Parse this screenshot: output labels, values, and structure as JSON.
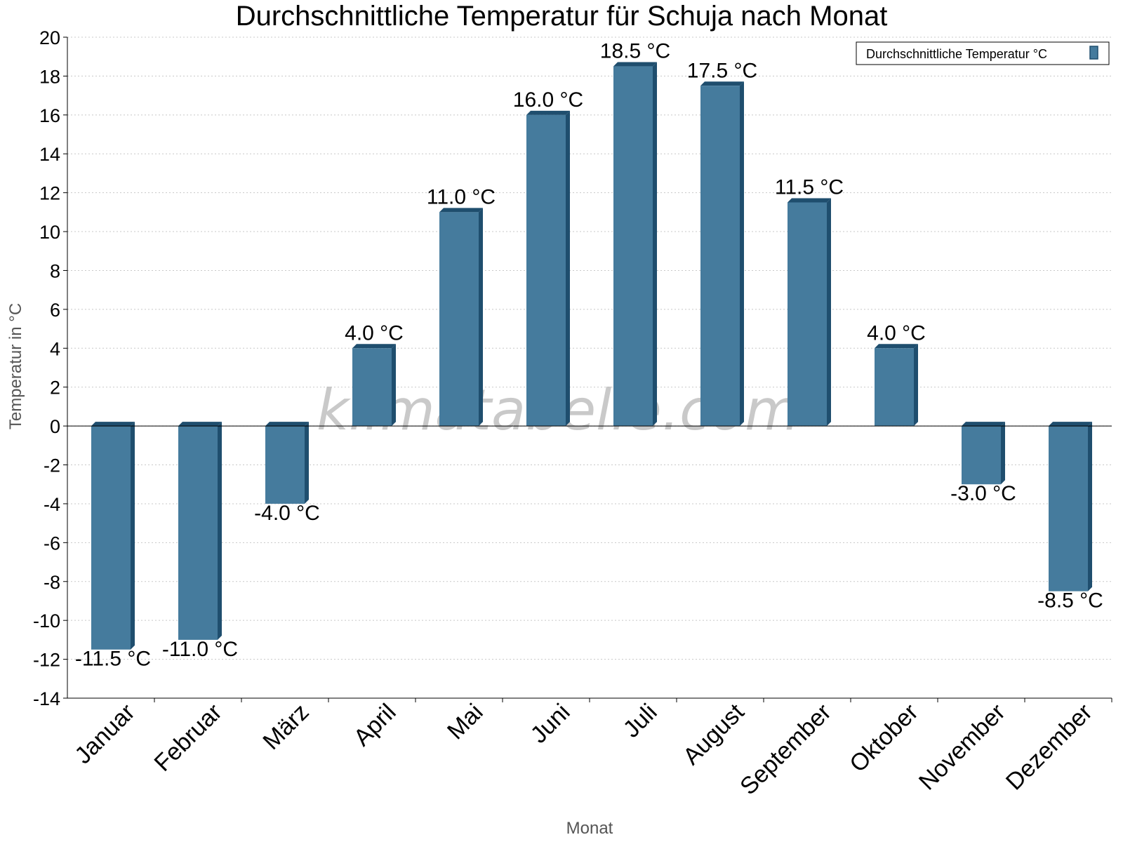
{
  "watermark": "klimatabelle.com",
  "colors": {
    "bar": "#457b9d",
    "bar_side": "#1f4e6e",
    "grid": "#c8c8c8"
  },
  "chart_data": {
    "type": "bar",
    "title": "Durchschnittliche Temperatur für Schuja nach Monat",
    "xlabel": "Monat",
    "ylabel": "Temperatur in °C",
    "ylim": [
      -14,
      20
    ],
    "ytick_step": 2,
    "grid": true,
    "legend_position": "top-right",
    "categories": [
      "Januar",
      "Februar",
      "März",
      "April",
      "Mai",
      "Juni",
      "Juli",
      "August",
      "September",
      "Oktober",
      "November",
      "Dezember"
    ],
    "series": [
      {
        "name": "Durchschnittliche Temperatur °C",
        "values": [
          -11.5,
          -11.0,
          -4.0,
          4.0,
          11.0,
          16.0,
          18.5,
          17.5,
          11.5,
          4.0,
          -3.0,
          -8.5
        ],
        "labels": [
          "-11.5 °C",
          "-11.0 °C",
          "-4.0 °C",
          "4.0 °C",
          "11.0 °C",
          "16.0 °C",
          "18.5 °C",
          "17.5 °C",
          "11.5 °C",
          "4.0 °C",
          "-3.0 °C",
          "-8.5 °C"
        ]
      }
    ]
  }
}
